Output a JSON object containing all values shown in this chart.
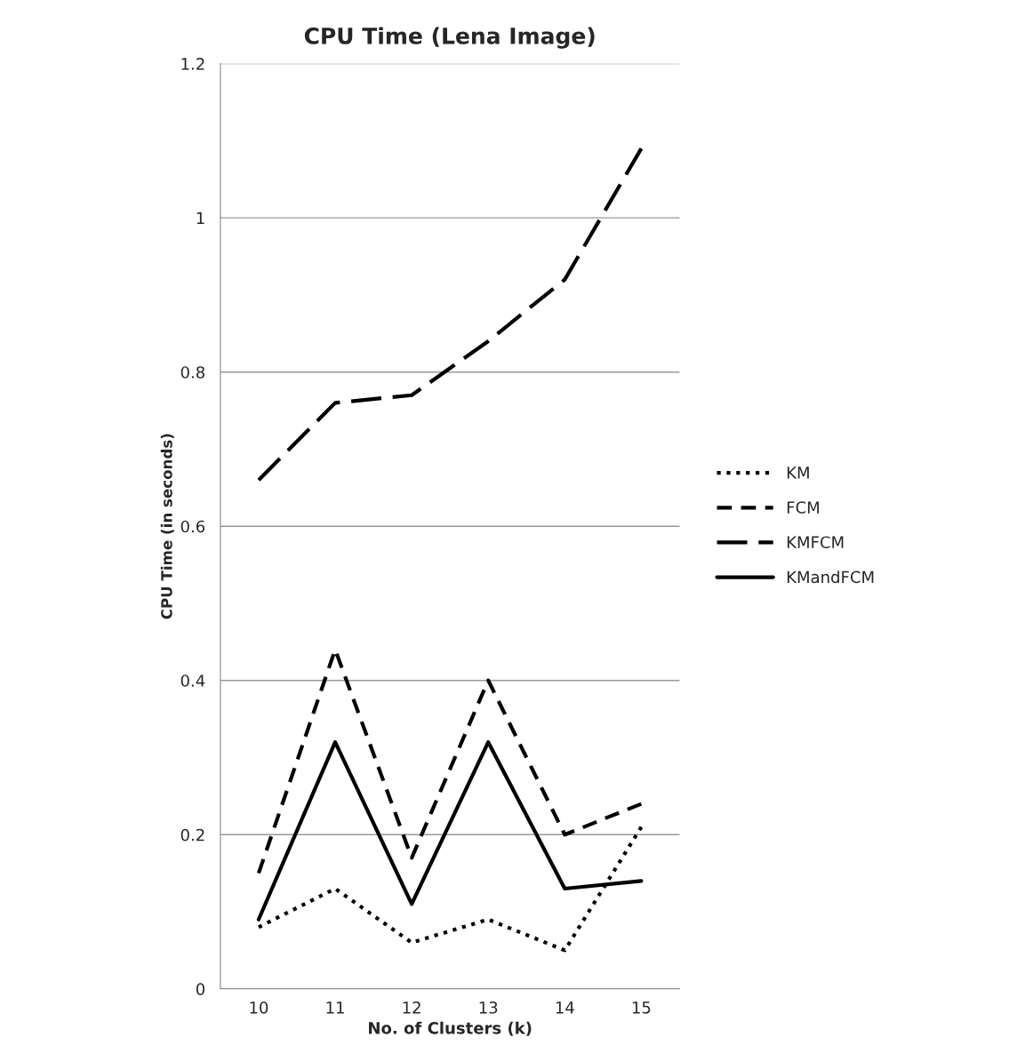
{
  "chart_data": {
    "type": "line",
    "title": "CPU Time (Lena Image)",
    "xlabel": "No. of Clusters (k)",
    "ylabel": "CPU Time (in seconds)",
    "categories": [
      "10",
      "11",
      "12",
      "13",
      "14",
      "15"
    ],
    "series": [
      {
        "name": "KM",
        "color": "#000000",
        "line_style": "dotted",
        "values": [
          0.08,
          0.13,
          0.06,
          0.09,
          0.05,
          0.21
        ]
      },
      {
        "name": "FCM",
        "color": "#000000",
        "line_style": "dashed",
        "values": [
          0.15,
          0.44,
          0.17,
          0.4,
          0.2,
          0.24
        ]
      },
      {
        "name": "KMFCM",
        "color": "#000000",
        "line_style": "longdash",
        "values": [
          0.66,
          0.76,
          0.77,
          0.84,
          0.92,
          1.09
        ]
      },
      {
        "name": "KMandFCM",
        "color": "#000000",
        "line_style": "solid",
        "values": [
          0.09,
          0.32,
          0.11,
          0.32,
          0.13,
          0.14
        ]
      }
    ],
    "ylim": [
      0,
      1.2
    ],
    "yticks": [
      0,
      0.2,
      0.4,
      0.6,
      0.8,
      1,
      1.2
    ],
    "grid": "y",
    "legend": "right",
    "marker": "none"
  }
}
